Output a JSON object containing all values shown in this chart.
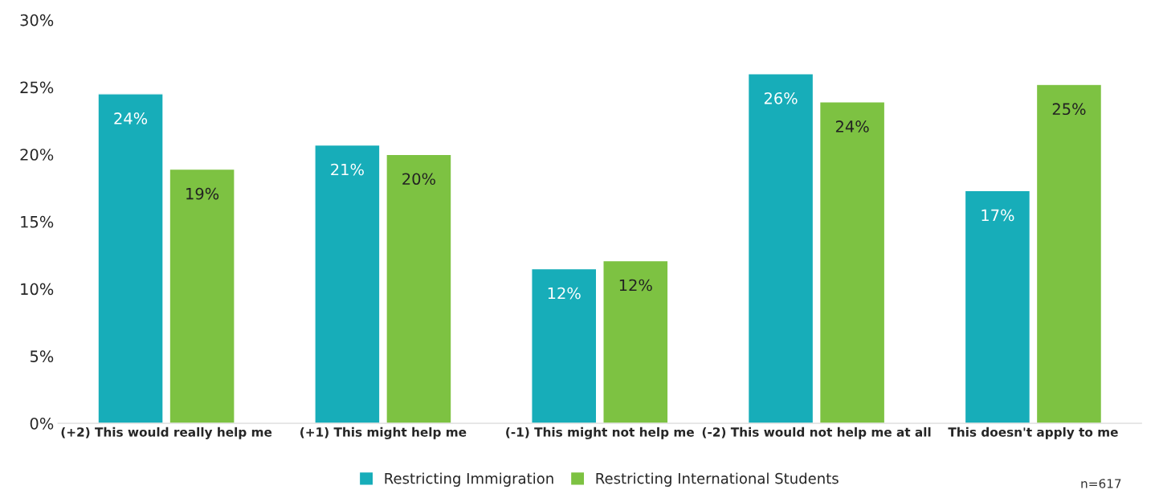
{
  "chart_data": {
    "type": "bar",
    "categories": [
      "(+2) This would really help me",
      "(+1) This might help me",
      "(-1) This might not help me",
      "(-2) This would not help me at all",
      "This doesn't apply to me"
    ],
    "series": [
      {
        "name": "Restricting Immigration",
        "color": "#17adb9",
        "values": [
          24.5,
          20.7,
          11.5,
          26.0,
          17.3
        ],
        "value_labels": [
          "24%",
          "21%",
          "12%",
          "26%",
          "17%"
        ]
      },
      {
        "name": "Restricting International Students",
        "color": "#7dc242",
        "values": [
          18.9,
          20.0,
          12.1,
          23.9,
          25.2
        ],
        "value_labels": [
          "19%",
          "20%",
          "12%",
          "24%",
          "25%"
        ]
      }
    ],
    "ylim": [
      0,
      30
    ],
    "yticks": [
      {
        "value": 0,
        "label": "0%"
      },
      {
        "value": 5,
        "label": "5%"
      },
      {
        "value": 10,
        "label": "10%"
      },
      {
        "value": 15,
        "label": "15%"
      },
      {
        "value": 20,
        "label": "20%"
      },
      {
        "value": 25,
        "label": "25%"
      },
      {
        "value": 30,
        "label": "30%"
      }
    ],
    "grid": false,
    "legend": "bottom",
    "annotations": [
      "n=617"
    ]
  }
}
